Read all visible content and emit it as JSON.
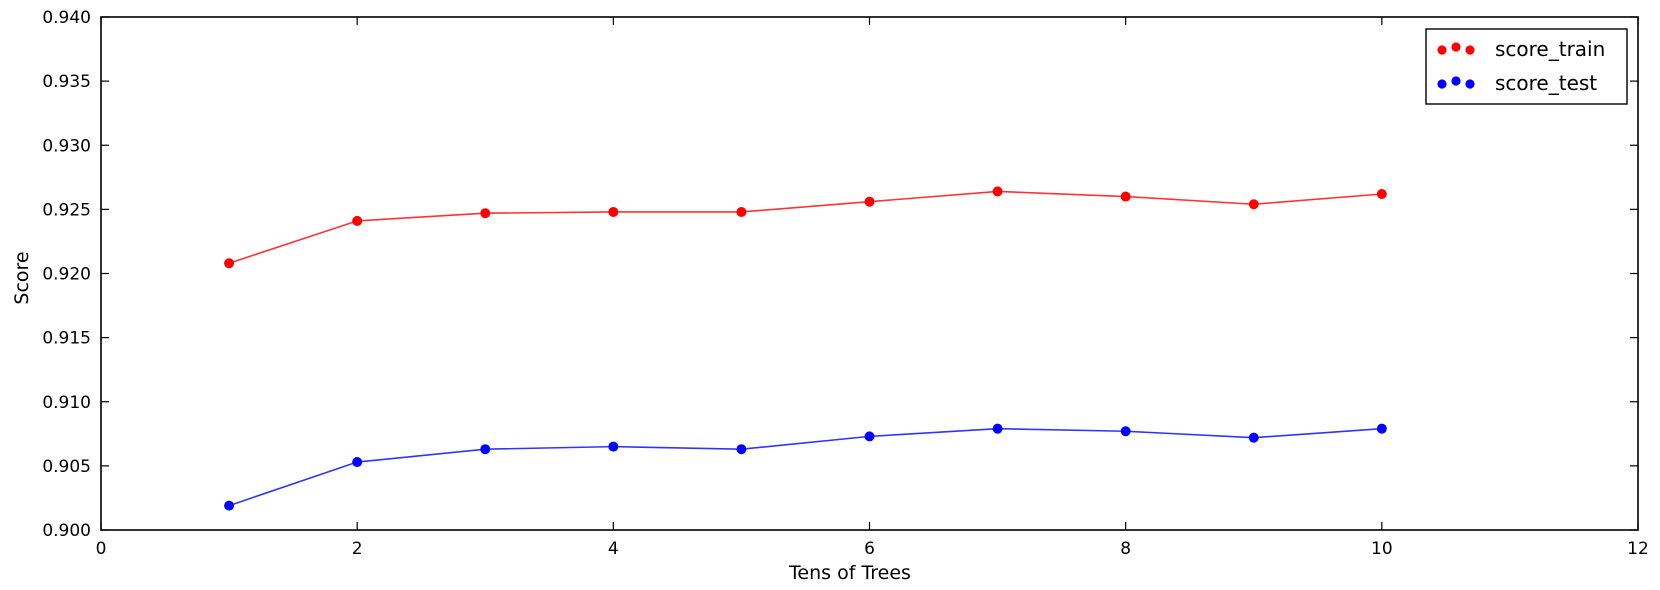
{
  "chart_data": {
    "type": "line",
    "title": "",
    "xlabel": "Tens of Trees",
    "ylabel": "Score",
    "xlim": [
      0,
      12
    ],
    "ylim": [
      0.9,
      0.94
    ],
    "x_ticks": [
      0,
      2,
      4,
      6,
      8,
      10,
      12
    ],
    "x_tick_labels": [
      "0",
      "2",
      "4",
      "6",
      "8",
      "10",
      "12"
    ],
    "y_ticks": [
      0.9,
      0.905,
      0.91,
      0.915,
      0.92,
      0.925,
      0.93,
      0.935,
      0.94
    ],
    "y_tick_labels": [
      "0.900",
      "0.905",
      "0.910",
      "0.915",
      "0.920",
      "0.925",
      "0.930",
      "0.935",
      "0.940"
    ],
    "grid": false,
    "legend_position": "top-right",
    "x": [
      1,
      2,
      3,
      4,
      5,
      6,
      7,
      8,
      9,
      10
    ],
    "series": [
      {
        "name": "score_train",
        "color": "#ff0000",
        "values": [
          0.9208,
          0.9241,
          0.9247,
          0.9248,
          0.9248,
          0.9256,
          0.9264,
          0.926,
          0.9254,
          0.9262
        ]
      },
      {
        "name": "score_test",
        "color": "#0000ff",
        "values": [
          0.9019,
          0.9053,
          0.9063,
          0.9065,
          0.9063,
          0.9073,
          0.9079,
          0.9077,
          0.9072,
          0.9079
        ]
      }
    ]
  }
}
